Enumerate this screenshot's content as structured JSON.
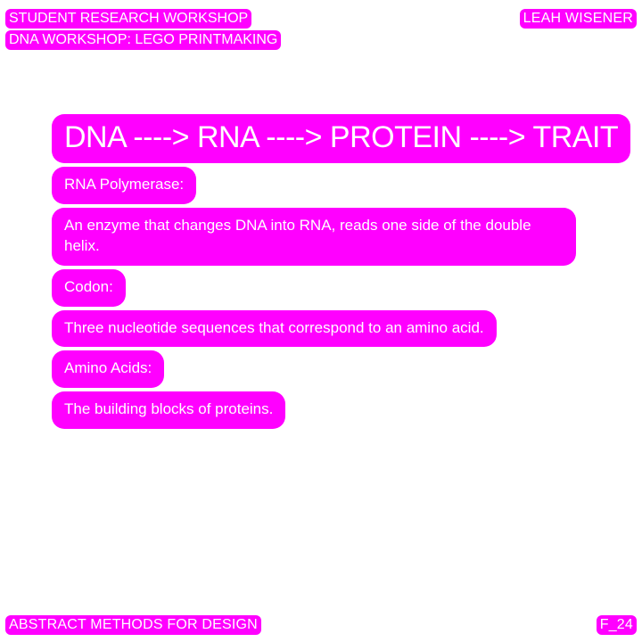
{
  "header": {
    "line1": "STUDENT RESEARCH WORKSHOP",
    "line2": "DNA WORKSHOP: LEGO PRINTMAKING",
    "author": "LEAH WISENER"
  },
  "main": {
    "title": "DNA ----> RNA ----> PROTEIN ----> TRAIT",
    "items": [
      {
        "term": "RNA Polymerase:",
        "definition": "An enzyme that changes DNA into RNA, reads one side of the double helix."
      },
      {
        "term": "Codon:",
        "definition": "Three nucleotide sequences that correspond to an amino acid."
      },
      {
        "term": "Amino Acids:",
        "definition": "The building blocks of proteins."
      }
    ]
  },
  "footer": {
    "course": "ABSTRACT METHODS FOR DESIGN",
    "page": "F_24"
  },
  "colors": {
    "highlight": "#ff00ff",
    "text": "#ffffff",
    "background": "#ffffff"
  }
}
